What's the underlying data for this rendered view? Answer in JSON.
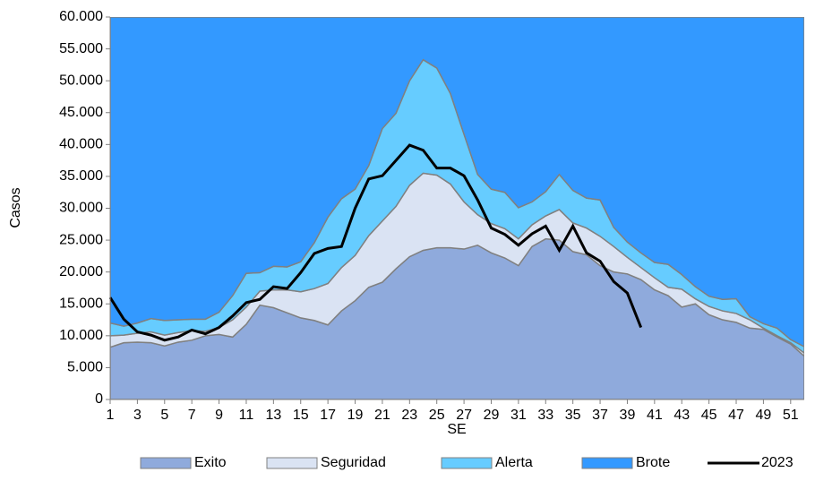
{
  "chart_data": {
    "type": "area",
    "stacked": true,
    "x_label": "SE",
    "y_label": "Casos",
    "x": [
      1,
      2,
      3,
      4,
      5,
      6,
      7,
      8,
      9,
      10,
      11,
      12,
      13,
      14,
      15,
      16,
      17,
      18,
      19,
      20,
      21,
      22,
      23,
      24,
      25,
      26,
      27,
      28,
      29,
      30,
      31,
      32,
      33,
      34,
      35,
      36,
      37,
      38,
      39,
      40,
      41,
      42,
      43,
      44,
      45,
      46,
      47,
      48,
      49,
      50,
      51,
      52
    ],
    "xlim": [
      1,
      52
    ],
    "xticks": [
      1,
      3,
      5,
      7,
      9,
      11,
      13,
      15,
      17,
      19,
      21,
      23,
      25,
      27,
      29,
      31,
      33,
      35,
      37,
      39,
      41,
      43,
      45,
      47,
      49,
      51
    ],
    "ylim": [
      0,
      60000
    ],
    "yticks": [
      0,
      {
        "value": 5000,
        "label": "5.000"
      },
      {
        "value": 10000,
        "label": "10.000"
      },
      {
        "value": 15000,
        "label": "15.000"
      },
      {
        "value": 20000,
        "label": "20.000"
      },
      {
        "value": 25000,
        "label": "25.000"
      },
      {
        "value": 30000,
        "label": "30.000"
      },
      {
        "value": 35000,
        "label": "35.000"
      },
      {
        "value": 40000,
        "label": "40.000"
      },
      {
        "value": 45000,
        "label": "45.000"
      },
      {
        "value": 50000,
        "label": "50.000"
      },
      {
        "value": 55000,
        "label": "55.000"
      },
      {
        "value": 60000,
        "label": "60.000"
      }
    ],
    "series": [
      {
        "name": "Exito",
        "color": "#8faadc",
        "values": [
          8200,
          8900,
          9000,
          8900,
          8400,
          9000,
          9300,
          10000,
          10200,
          9800,
          11800,
          14800,
          14400,
          13600,
          12800,
          12400,
          11700,
          13900,
          15500,
          17600,
          18400,
          20500,
          22400,
          23400,
          23800,
          23800,
          23600,
          24200,
          23000,
          22200,
          21000,
          24000,
          25200,
          25000,
          23200,
          22700,
          21000,
          20000,
          19700,
          18800,
          17200,
          16300,
          14500,
          15000,
          13300,
          12500,
          12100,
          11200,
          11000,
          9800,
          8700,
          6800
        ]
      },
      {
        "name": "Seguridad",
        "color": "#dae3f3",
        "values": [
          1800,
          1200,
          1400,
          1700,
          1700,
          1500,
          1500,
          700,
          1100,
          2700,
          2700,
          2200,
          2800,
          3600,
          4100,
          5000,
          6500,
          6800,
          7100,
          8100,
          9600,
          9800,
          11200,
          12100,
          11400,
          10000,
          7400,
          4800,
          4600,
          4600,
          4200,
          3400,
          3600,
          4800,
          4500,
          4200,
          4600,
          4000,
          2600,
          1900,
          1900,
          1300,
          2800,
          800,
          1300,
          1400,
          1400,
          1300,
          200,
          200,
          200,
          500
        ]
      },
      {
        "name": "Alerta",
        "color": "#66ccff",
        "values": [
          2000,
          1400,
          1600,
          2100,
          2300,
          2000,
          1800,
          1900,
          2400,
          3800,
          5300,
          2900,
          3700,
          3600,
          4700,
          7200,
          10400,
          10800,
          10400,
          11000,
          14500,
          14600,
          16400,
          17800,
          16800,
          14200,
          10600,
          6300,
          5400,
          5700,
          4900,
          3600,
          3800,
          5500,
          5100,
          4700,
          5700,
          3000,
          2400,
          2300,
          2400,
          3600,
          2300,
          1900,
          1600,
          1800,
          2300,
          500,
          700,
          1200,
          500,
          1000
        ]
      },
      {
        "name": "Brote",
        "color": "#3399ff",
        "values": [
          48000,
          48500,
          48000,
          47300,
          47600,
          47500,
          47400,
          47400,
          46300,
          43700,
          40200,
          40100,
          39100,
          39200,
          38400,
          35400,
          31400,
          28500,
          27000,
          23300,
          17500,
          15100,
          10000,
          6700,
          8000,
          12000,
          18400,
          24700,
          27000,
          27500,
          29900,
          29000,
          27400,
          24700,
          27200,
          28400,
          28700,
          33000,
          35300,
          37000,
          38500,
          38800,
          40400,
          42300,
          43800,
          44300,
          44200,
          47000,
          48100,
          48800,
          50600,
          51700
        ]
      },
      {
        "name": "2023",
        "color": "#000000",
        "type": "line",
        "values": [
          16000,
          12600,
          10600,
          10100,
          9300,
          9800,
          10900,
          10300,
          11300,
          13100,
          15200,
          15700,
          17700,
          17400,
          19900,
          22900,
          23700,
          24000,
          30000,
          34600,
          35100,
          37500,
          39900,
          39100,
          36300,
          36300,
          35100,
          31300,
          26900,
          25900,
          24200,
          26000,
          27200,
          23400,
          27200,
          23000,
          21700,
          18500,
          16700,
          11300,
          null,
          null,
          null,
          null,
          null,
          null,
          null,
          null,
          null,
          null,
          null,
          null
        ]
      }
    ]
  }
}
